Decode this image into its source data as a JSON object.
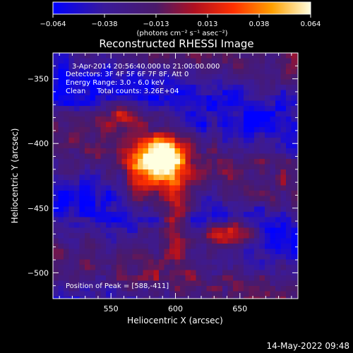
{
  "chart_data": {
    "type": "heatmap",
    "title": "Reconstructed RHESSI Image",
    "colorbar": {
      "units_label": "(photons cm⁻² s⁻¹ asec⁻²)",
      "tick_labels": [
        "−0.064",
        "−0.038",
        "−0.013",
        "0.013",
        "0.038",
        "0.064"
      ],
      "range": [
        -0.064,
        0.064
      ]
    },
    "annotations": [
      "3-Apr-2014 20:56:40.000 to 21:00:00.000",
      "Detectors: 3F 4F 5F 6F 7F 8F, Att 0",
      "Energy Range: 3.0 - 6.0 keV",
      "Clean     Total counts: 3.26E+04"
    ],
    "peak_label": "Position of Peak = [588,-411]",
    "xlabel": "Heliocentric X (arcsec)",
    "ylabel": "Heliocentric Y (arcsec)",
    "x_ticks": [
      "550",
      "600",
      "650"
    ],
    "y_ticks": [
      "−350",
      "−400",
      "−450",
      "−500"
    ],
    "xlim": [
      505,
      695
    ],
    "ylim": [
      -520,
      -330
    ],
    "timestamp": "14-May-2022 09:48",
    "sources": [
      {
        "x": 588,
        "y": -411,
        "intensity": 0.064
      },
      {
        "x": 640,
        "y": -470,
        "intensity": 0.05
      },
      {
        "x": 600,
        "y": -455,
        "intensity": 0.03
      }
    ]
  }
}
